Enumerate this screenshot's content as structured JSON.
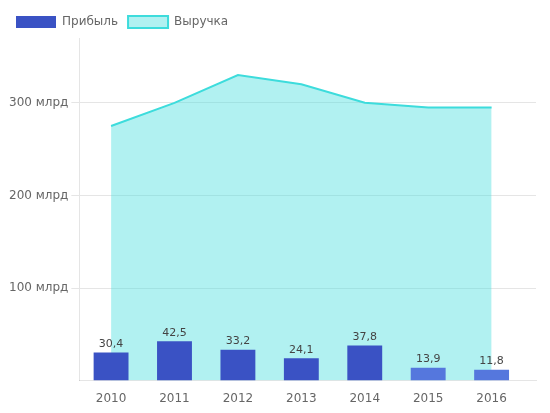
{
  "chart_data": {
    "type": "bar",
    "x": [
      2010,
      2011,
      2012,
      2013,
      2014,
      2015,
      2016
    ],
    "xlim": [
      2009.5,
      2016.7
    ],
    "xticks": [
      2010,
      2011,
      2012,
      2013,
      2014,
      2015,
      2016
    ],
    "ylim": [
      0,
      370
    ],
    "yticks": [
      {
        "value": 100,
        "label": "100 млрд"
      },
      {
        "value": 200,
        "label": "200 млрд"
      },
      {
        "value": 300,
        "label": "300 млрд"
      }
    ],
    "grid": true,
    "legend": "upper left",
    "series": [
      {
        "name": "Прибыль",
        "type": "bar",
        "colors": [
          "#3a52c4",
          "#3a52c4",
          "#3a52c4",
          "#3a52c4",
          "#3a52c4",
          "#5577dd",
          "#5577dd"
        ],
        "values": [
          30.4,
          42.5,
          33.2,
          24.1,
          37.8,
          13.9,
          11.8
        ],
        "value_labels": [
          "30,4",
          "42,5",
          "33,2",
          "24,1",
          "37,8",
          "13,9",
          "11,8"
        ],
        "data_labels": true
      },
      {
        "name": "Выручка",
        "type": "area",
        "color": "#3ddcdc",
        "values": [
          275,
          300,
          330,
          320,
          300,
          295,
          295
        ]
      }
    ]
  }
}
